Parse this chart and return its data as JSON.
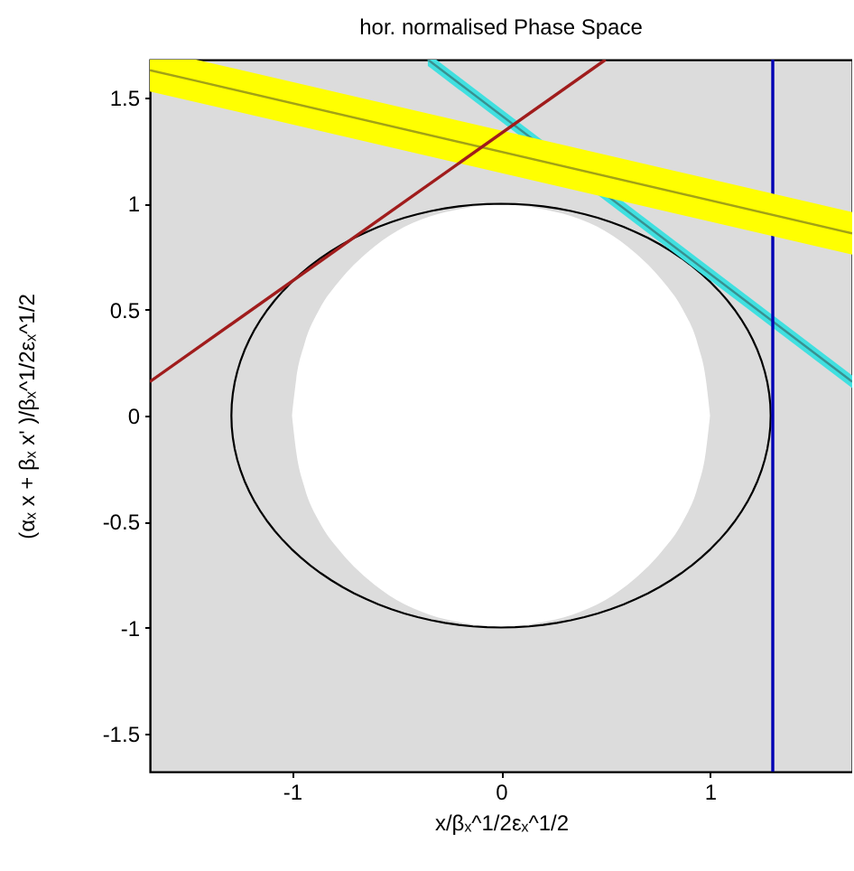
{
  "chart_data": {
    "type": "line",
    "title": "hor. normalised Phase Space",
    "xlabel": "x/βₓ^1/2εₓ^1/2",
    "ylabel": "(αₓ x + βₓ x' )/βₓ^1/2εₓ^1/2",
    "xlim": [
      -1.68,
      1.68
    ],
    "ylim": [
      -1.68,
      1.68
    ],
    "xticks": [
      -1,
      0,
      1
    ],
    "yticks": [
      -1.5,
      -1,
      -0.5,
      0,
      0.5,
      1,
      1.5
    ],
    "grid": false,
    "series": [
      {
        "type": "area",
        "color": "#ffffff",
        "x": [
          -1,
          -0.98,
          -0.94,
          -0.87,
          -0.77,
          -0.64,
          -0.5,
          -0.34,
          -0.17,
          0,
          0.17,
          0.34,
          0.5,
          0.64,
          0.77,
          0.87,
          0.94,
          0.98,
          1
        ],
        "values": [
          0,
          0.17,
          0.34,
          0.5,
          0.64,
          0.77,
          0.87,
          0.94,
          0.98,
          1,
          0.98,
          0.94,
          0.87,
          0.77,
          0.64,
          0.5,
          0.34,
          0.17,
          0
        ]
      },
      {
        "type": "area",
        "color": "#ffffff",
        "x": [
          -1,
          -0.98,
          -0.94,
          -0.87,
          -0.77,
          -0.64,
          -0.5,
          -0.34,
          -0.17,
          0,
          0.17,
          0.34,
          0.5,
          0.64,
          0.77,
          0.87,
          0.94,
          0.98,
          1
        ],
        "values": [
          0,
          -0.17,
          -0.34,
          -0.5,
          -0.64,
          -0.77,
          -0.87,
          -0.94,
          -0.98,
          -1,
          -0.98,
          -0.94,
          -0.87,
          -0.77,
          -0.64,
          -0.5,
          -0.34,
          -0.17,
          0
        ]
      },
      {
        "color": "#399191",
        "x": [
          -0.35,
          -0.31,
          1.68
        ],
        "values": [
          1.68,
          1.65,
          0.16
        ],
        "lower": [
          1.65,
          1.62,
          0.13
        ],
        "upper": [
          1.68,
          1.68,
          0.19
        ]
      },
      {
        "color": "#0000b4",
        "x": [
          1.3,
          1.3
        ],
        "values": [
          -1.68,
          1.68
        ]
      },
      {
        "color": "#a2a216",
        "x": [
          -1.68,
          -1.46,
          1.68
        ],
        "values": [
          1.63,
          1.58,
          0.86
        ],
        "lower": [
          1.53,
          1.48,
          0.76
        ],
        "upper": [
          1.68,
          1.68,
          0.96
        ]
      },
      {
        "color": "#a01c1c",
        "x": [
          -1.68,
          0.5
        ],
        "values": [
          0.16,
          1.68
        ]
      }
    ]
  }
}
